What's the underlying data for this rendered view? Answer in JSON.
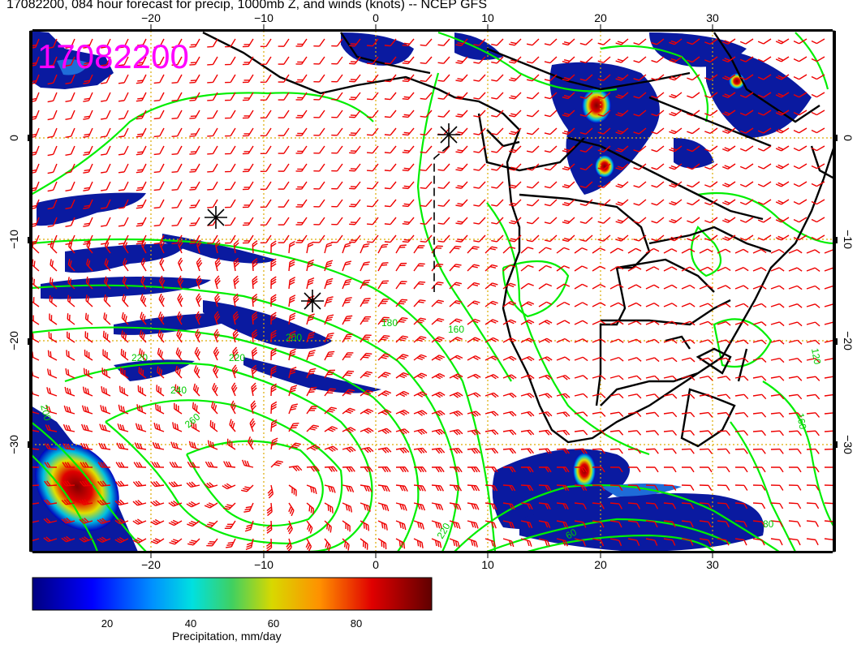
{
  "title": "17082200, 084 hour forecast for precip, 1000mb Z, and winds (knots) -- NCEP GFS",
  "date_stamp": "17082200",
  "colors": {
    "date_stamp": "#ff00ff",
    "contour": "#00ee00",
    "wind_barb": "#ee0000",
    "grid": "#ddaa00",
    "coast": "#000000"
  },
  "axes": {
    "lon_ticks": [
      "−20",
      "−10",
      "0",
      "10",
      "20",
      "30"
    ],
    "lat_ticks": [
      "0",
      "−10",
      "−20",
      "−30"
    ]
  },
  "contour_labels": [
    "180",
    "200",
    "220",
    "220",
    "240",
    "260",
    "160",
    "120",
    "200",
    "220",
    "160",
    "60",
    "80"
  ],
  "colorbar": {
    "label": "Precipitation, mm/day",
    "ticks": [
      "20",
      "40",
      "60",
      "80"
    ],
    "colors": [
      "#00008b",
      "#0000ff",
      "#0090ff",
      "#00e0e0",
      "#40e040",
      "#e0e000",
      "#ff9000",
      "#e00000",
      "#800000"
    ]
  }
}
